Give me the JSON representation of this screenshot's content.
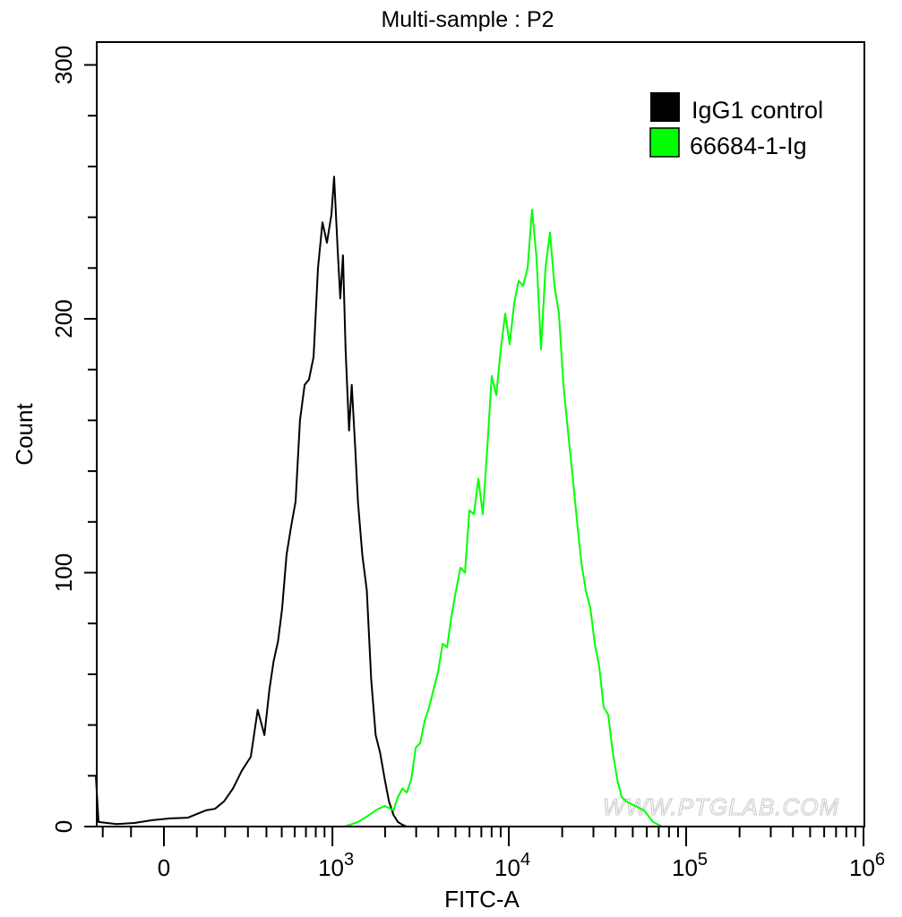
{
  "chart_data": {
    "type": "line",
    "title": "Multi-sample : P2",
    "xlabel": "FITC-A",
    "ylabel": "Count",
    "x_scale": "biexponential",
    "xlim": [
      -228,
      1000000
    ],
    "ylim": [
      0,
      309
    ],
    "x_ticks": [
      {
        "value": 0,
        "base": "0",
        "exp": ""
      },
      {
        "value": 1000,
        "base": "10",
        "exp": "3"
      },
      {
        "value": 10000,
        "base": "10",
        "exp": "4"
      },
      {
        "value": 100000,
        "base": "10",
        "exp": "5"
      },
      {
        "value": 1000000,
        "base": "10",
        "exp": "6"
      }
    ],
    "y_ticks": [
      0,
      100,
      200,
      300
    ],
    "grid": false,
    "legend_position": "top-right",
    "watermark": "WWW.PTGLAB.COM",
    "series": [
      {
        "name": "IgG1 control",
        "color": "#000000",
        "x": [
          -228,
          -217,
          -149,
          -89,
          -35,
          19,
          72,
          130,
          162,
          196,
          232,
          271,
          314,
          350,
          388,
          418,
          444,
          474,
          503,
          535,
          570,
          607,
          645,
          688,
          729,
          777,
          824,
          875,
          929,
          987,
          1023,
          1072,
          1110,
          1150,
          1190,
          1247,
          1291,
          1353,
          1401,
          1485,
          1574,
          1668,
          1768,
          1874,
          1986,
          2104,
          2231,
          2363,
          2506,
          2655
        ],
        "y": [
          20,
          1.8,
          1,
          1.4,
          2.5,
          3.2,
          3.5,
          6.4,
          7,
          9.9,
          15,
          22,
          27.5,
          46,
          36,
          54,
          65,
          73,
          86,
          107,
          118,
          128,
          160,
          174,
          176,
          185,
          220,
          238,
          230,
          241,
          256,
          227,
          208,
          225,
          188,
          156,
          174,
          149,
          128,
          107,
          93,
          58,
          36,
          29,
          19,
          10,
          4.6,
          1.8,
          0.7,
          0
        ]
      },
      {
        "name": "66684-1-Ig",
        "color": "#00ff00",
        "x": [
          1177,
          1401,
          1574,
          1768,
          1986,
          2231,
          2363,
          2506,
          2655,
          2815,
          2983,
          3160,
          3349,
          3552,
          3762,
          3990,
          4228,
          4482,
          4750,
          5035,
          5336,
          5655,
          5990,
          6353,
          6730,
          7136,
          7560,
          8017,
          8495,
          9007,
          9544,
          10116,
          10720,
          11362,
          12040,
          12764,
          13525,
          14340,
          15195,
          16107,
          17068,
          18096,
          19174,
          20328,
          21540,
          22837,
          24199,
          25650,
          27180,
          28820,
          30530,
          32360,
          34290,
          36360,
          38530,
          40840,
          43280,
          45870,
          51540,
          57900,
          65030,
          73060
        ],
        "y": [
          0,
          1.8,
          3.9,
          6.4,
          8.1,
          6.4,
          11.6,
          15,
          13.4,
          18.7,
          31,
          32.8,
          41.6,
          47,
          54,
          61,
          72,
          70.6,
          83,
          93,
          102,
          100,
          124.6,
          123,
          137,
          123,
          149,
          177.5,
          170,
          188,
          202,
          190,
          206,
          215,
          213,
          220,
          243,
          224,
          188,
          220,
          234,
          213,
          202,
          174,
          156,
          139,
          121,
          104,
          93,
          86,
          72,
          63,
          47,
          44,
          29.6,
          18.7,
          11.6,
          9.9,
          8.1,
          6.4,
          1.8,
          0
        ]
      }
    ]
  }
}
